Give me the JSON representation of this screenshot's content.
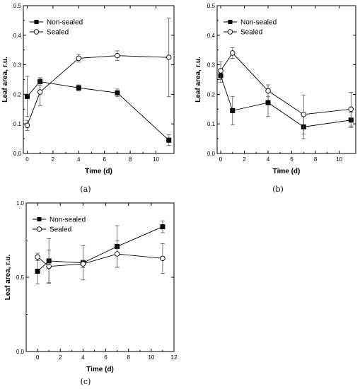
{
  "chart_data": [
    {
      "type": "line",
      "panel_label": "(a)",
      "xlabel": "Time (d)",
      "ylabel": "Leaf area, r.u.",
      "xlim": [
        -0.3,
        11.4
      ],
      "ylim": [
        0,
        0.5
      ],
      "xticks": [
        0,
        2,
        4,
        6,
        8,
        10
      ],
      "yticks": [
        0.0,
        0.1,
        0.2,
        0.3,
        0.4,
        0.5
      ],
      "legend_position": "top-left",
      "series": [
        {
          "name": "Non-sealed",
          "marker": "filled-square",
          "x": [
            0,
            1,
            4,
            7,
            11
          ],
          "y": [
            0.193,
            0.243,
            0.222,
            0.205,
            0.045
          ],
          "err": [
            0.068,
            0.013,
            0.01,
            0.013,
            0.018
          ]
        },
        {
          "name": "Sealed",
          "marker": "open-circle",
          "x": [
            0,
            1,
            4,
            7,
            11
          ],
          "y": [
            0.095,
            0.208,
            0.322,
            0.331,
            0.325
          ],
          "err": [
            0.017,
            0.047,
            0.013,
            0.016,
            0.133
          ]
        }
      ]
    },
    {
      "type": "line",
      "panel_label": "(b)",
      "xlabel": "Time (d)",
      "ylabel": "Leaf area, r.u.",
      "xlim": [
        -0.3,
        11.4
      ],
      "ylim": [
        0,
        0.5
      ],
      "xticks": [
        0,
        2,
        4,
        6,
        8,
        10
      ],
      "yticks": [
        0.0,
        0.1,
        0.2,
        0.3,
        0.4,
        0.5
      ],
      "legend_position": "top-left",
      "series": [
        {
          "name": "Non-sealed",
          "marker": "filled-square",
          "x": [
            0,
            1,
            4,
            7,
            11
          ],
          "y": [
            0.263,
            0.145,
            0.172,
            0.09,
            0.113
          ],
          "err": [
            0.022,
            0.048,
            0.047,
            0.04,
            0.025
          ]
        },
        {
          "name": "Sealed",
          "marker": "open-circle",
          "x": [
            0,
            1,
            4,
            7,
            11
          ],
          "y": [
            0.28,
            0.34,
            0.212,
            0.132,
            0.15
          ],
          "err": [
            0.03,
            0.018,
            0.02,
            0.066,
            0.057
          ]
        }
      ]
    },
    {
      "type": "line",
      "panel_label": "(c)",
      "xlabel": "Time (d)",
      "ylabel": "Leaf area, r.u.",
      "xlim": [
        -1,
        12
      ],
      "ylim": [
        0,
        1.0
      ],
      "xticks": [
        0,
        2,
        4,
        6,
        8,
        10,
        12
      ],
      "yticks": [
        0.0,
        0.5,
        1.0
      ],
      "legend_position": "top-left",
      "series": [
        {
          "name": "Non-sealed",
          "marker": "filled-square",
          "x": [
            0,
            1,
            4,
            7,
            11
          ],
          "y": [
            0.54,
            0.61,
            0.597,
            0.707,
            0.84
          ],
          "err": [
            0.085,
            0.15,
            0.115,
            0.14,
            0.04
          ]
        },
        {
          "name": "Sealed",
          "marker": "open-circle",
          "x": [
            0,
            1,
            4,
            7,
            11
          ],
          "y": [
            0.637,
            0.573,
            0.59,
            0.657,
            0.627
          ],
          "err": [
            0.025,
            0.11,
            0.025,
            0.09,
            0.1
          ]
        }
      ]
    }
  ]
}
